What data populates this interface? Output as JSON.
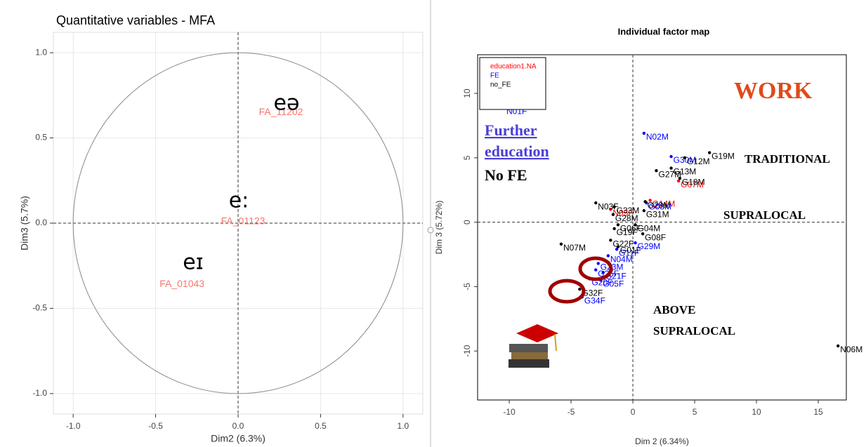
{
  "chart_data": [
    {
      "type": "scatter",
      "title": "Quantitative variables - MFA",
      "xlabel": "Dim2 (6.3%)",
      "ylabel": "Dim3 (5.7%)",
      "xlim": [
        -1.12,
        1.12
      ],
      "ylim": [
        -1.12,
        1.12
      ],
      "xticks": [
        {
          "value": -1,
          "label": "-1.0"
        },
        {
          "value": -0.5,
          "label": "-0.5"
        },
        {
          "value": 0,
          "label": "0.0"
        },
        {
          "value": 0.5,
          "label": "0.5"
        },
        {
          "value": 1,
          "label": "1.0"
        }
      ],
      "yticks": [
        {
          "value": -1,
          "label": "-1.0"
        },
        {
          "value": -0.5,
          "label": "-0.5"
        },
        {
          "value": 0,
          "label": "0.0"
        },
        {
          "value": 0.5,
          "label": "0.5"
        },
        {
          "value": 1,
          "label": "1.0"
        }
      ],
      "grid": true,
      "color": "#f8766d",
      "hlines": [
        0
      ],
      "vlines": [
        0
      ],
      "labels": [
        "FA_11202",
        "FA_01123",
        "FA_01043"
      ],
      "x": [
        0.26,
        0.03,
        -0.34
      ],
      "values": [
        0.65,
        0.01,
        -0.36
      ],
      "annotations": [
        "eə",
        "e:",
        "eɪ"
      ]
    },
    {
      "type": "scatter",
      "title": "Individual factor map",
      "xlabel": "Dim 2 (6.34%)",
      "ylabel": "Dim 3 (5.72%)",
      "xlim": [
        -12.56,
        17.27
      ],
      "ylim": [
        -13.8,
        13.0
      ],
      "xticks": [
        -10,
        -5,
        0,
        5,
        10,
        15
      ],
      "yticks": [
        -10,
        -5,
        0,
        5,
        10
      ],
      "grid": false,
      "legend": "upper left",
      "hlines": [
        0
      ],
      "vlines": [
        0
      ],
      "series": [
        {
          "name": "education1.NA",
          "color": "#ff0000",
          "labels": [
            "N05F",
            "G07M",
            "G14M"
          ],
          "x": [
            -1.8,
            3.7,
            1.4
          ],
          "values": [
            1.0,
            3.2,
            1.7
          ]
        },
        {
          "name": "FE",
          "color": "#0000ff",
          "labels": [
            "N01F",
            "N02M",
            "G30M",
            "G03M",
            "G29M",
            "G11F",
            "N04M",
            "G23M",
            "G25F",
            "G21F",
            "G05F",
            "G20F",
            "G34F"
          ],
          "x": [
            -10.4,
            0.9,
            3.1,
            1.1,
            0.2,
            -1.3,
            -2.0,
            -2.8,
            -3.0,
            -2.4,
            -2.6,
            -3.5,
            -4.1
          ],
          "values": [
            8.9,
            6.9,
            5.1,
            1.5,
            -1.6,
            -2.1,
            -2.6,
            -3.2,
            -3.7,
            -3.9,
            -4.5,
            -4.4,
            -5.8
          ]
        },
        {
          "name": "no_FE",
          "color": "#000000",
          "labels": [
            "G19M",
            "G12M",
            "G13M",
            "G27M",
            "G18M",
            "N03F",
            "G33M",
            "G29M",
            "G28M",
            "G31M",
            "G06F",
            "G19F",
            "G04M",
            "G08F",
            "G22F",
            "G01F",
            "N07M",
            "N06M",
            "G32F"
          ],
          "x": [
            6.2,
            4.2,
            3.1,
            1.9,
            3.8,
            -3.0,
            -1.5,
            1.0,
            -1.6,
            0.9,
            -1.2,
            -1.5,
            0.2,
            0.8,
            -1.8,
            -1.2,
            -5.8,
            16.6,
            -4.3
          ],
          "values": [
            5.4,
            5.0,
            4.2,
            4.0,
            3.4,
            1.5,
            1.2,
            1.6,
            0.6,
            0.9,
            -0.2,
            -0.5,
            -0.2,
            -0.9,
            -1.4,
            -1.9,
            -1.7,
            -9.6,
            -5.2
          ]
        }
      ],
      "annotations": [
        "Further",
        "education",
        "No FE",
        "TRADITIONAL",
        "SUPRALOCAL",
        "ABOVE",
        "SUPRALOCAL",
        "WORK"
      ]
    }
  ]
}
